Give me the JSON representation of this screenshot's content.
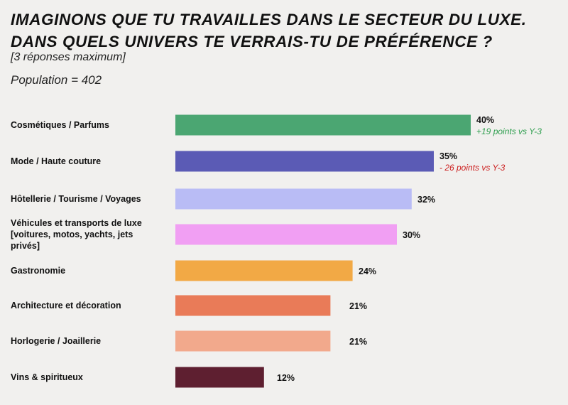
{
  "header": {
    "title_line1": "IMAGINONS QUE TU TRAVAILLES DANS LE SECTEUR DU LUXE.",
    "title_line2": "DANS QUELS UNIVERS TE VERRAIS-TU DE PRÉFÉRENCE ?",
    "subtitle": "[3 réponses maximum]",
    "population": "Population = 402"
  },
  "chart_data": {
    "type": "bar",
    "orientation": "horizontal",
    "categories": [
      "Cosmétiques / Parfums",
      "Mode / Haute couture",
      "Hôtellerie / Tourisme / Voyages",
      "Véhicules et transports de luxe [voitures, motos, yachts, jets privés]",
      "Gastronomie",
      "Architecture et décoration",
      "Horlogerie / Joaillerie",
      "Vins & spiritueux"
    ],
    "category_label_lines": [
      [
        "Cosmétiques / Parfums"
      ],
      [
        "Mode / Haute couture"
      ],
      [
        "Hôtellerie / Tourisme / Voyages"
      ],
      [
        "Véhicules et transports de luxe",
        "[voitures, motos, yachts, jets",
        "privés]"
      ],
      [
        "Gastronomie"
      ],
      [
        "Architecture et décoration"
      ],
      [
        "Horlogerie / Joaillerie"
      ],
      [
        "Vins & spiritueux"
      ]
    ],
    "values": [
      40,
      35,
      32,
      30,
      24,
      21,
      21,
      12
    ],
    "value_labels": [
      "40%",
      "35%",
      "32%",
      "30%",
      "24%",
      "21%",
      "21%",
      "12%"
    ],
    "colors": [
      "#4ba672",
      "#5b5bb5",
      "#b9bcf5",
      "#f19ff3",
      "#f2a945",
      "#e97b58",
      "#f2a98c",
      "#5e1f30"
    ],
    "annotations": [
      {
        "category_index": 0,
        "text": "+19 points vs Y-3",
        "color": "#2e9e4e"
      },
      {
        "category_index": 1,
        "text": "- 26 points vs Y-3",
        "color": "#cc1f1f"
      }
    ],
    "xlim": [
      0,
      40
    ],
    "grid": false,
    "legend": "none"
  }
}
